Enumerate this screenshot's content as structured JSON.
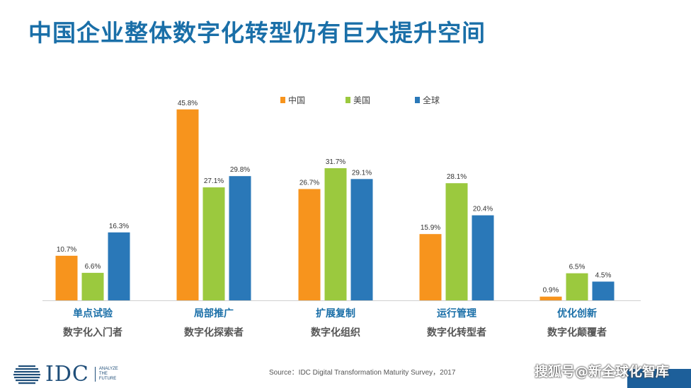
{
  "header": {
    "title": "中国企业整体数字化转型仍有巨大提升空间"
  },
  "chart_data": {
    "type": "bar",
    "categories": [
      "单点试验",
      "局部推广",
      "扩展复制",
      "运行管理",
      "优化创新"
    ],
    "subcategories": [
      "数字化入门者",
      "数字化探索者",
      "数字化组织",
      "数字化转型者",
      "数字化颠覆者"
    ],
    "series": [
      {
        "name": "中国",
        "color": "#f7941d",
        "values": [
          10.7,
          45.8,
          26.7,
          15.9,
          0.9
        ]
      },
      {
        "name": "美国",
        "color": "#9bc93e",
        "values": [
          6.6,
          27.1,
          31.7,
          28.1,
          6.5
        ]
      },
      {
        "name": "全球",
        "color": "#2a78b8",
        "values": [
          16.3,
          29.8,
          29.1,
          20.4,
          4.5
        ]
      }
    ],
    "value_suffix": "%",
    "ylim": [
      0,
      50
    ],
    "legend_position": "top"
  },
  "footer": {
    "brand": "IDC",
    "tagline": [
      "ANALYZE",
      "THE",
      "FUTURE"
    ],
    "source": "Source：IDC Digital Transformation Maturity Survey，2017",
    "watermark": "搜狐号@新全球化智库"
  }
}
